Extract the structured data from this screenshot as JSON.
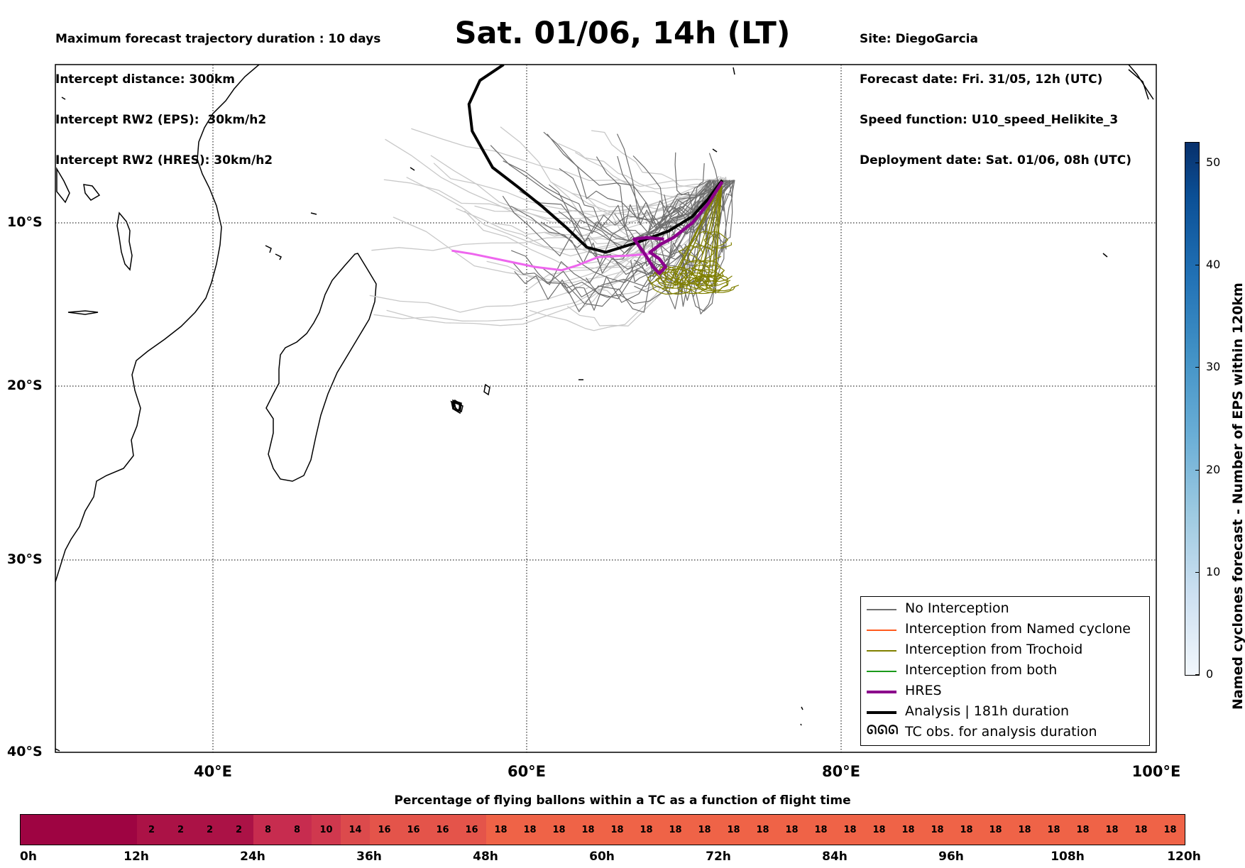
{
  "header_left": [
    "Maximum forecast trajectory duration : 10 days",
    "Intercept distance: 300km",
    "Intercept RW2 (EPS):  30km/h2",
    "Intercept RW2 (HRES): 30km/h2"
  ],
  "header_right": [
    "Site: DiegoGarcia",
    "Forecast date: Fri. 31/05, 12h (UTC)",
    "Speed function: U10_speed_Helikite_3",
    "Deployment date: Sat. 01/06, 08h (UTC)"
  ],
  "main_title": "Sat. 01/06, 14h (LT)",
  "map": {
    "lon_range": [
      30,
      100
    ],
    "lat_range": [
      -40,
      0
    ],
    "lat_labels": [
      "10°S",
      "20°S",
      "30°S",
      "40°S"
    ],
    "lon_labels": [
      "40°E",
      "60°E",
      "80°E",
      "100°E"
    ],
    "gridlines": "dotted",
    "release_site": {
      "lon": 72.4,
      "lat": -7.3
    },
    "colors": {
      "no_interception": "#6e6e6e",
      "no_interception_light": "#c8c8c8",
      "named_cyclone": "#ff5a1e",
      "trochoid": "#808000",
      "both": "#1a9a1a",
      "hres": "#8b008b",
      "analysis": "#000000",
      "pink_track": "#ee66ee"
    },
    "analysis_track": [
      [
        72.4,
        -7.3
      ],
      [
        71.5,
        -8.5
      ],
      [
        70.5,
        -9.6
      ],
      [
        69.0,
        -10.5
      ],
      [
        67.0,
        -11.2
      ],
      [
        65.0,
        -11.8
      ],
      [
        63.8,
        -11.5
      ],
      [
        62.5,
        -10.3
      ],
      [
        61.0,
        -9.0
      ],
      [
        59.5,
        -7.8
      ],
      [
        57.8,
        -6.5
      ],
      [
        56.5,
        -4.2
      ],
      [
        56.3,
        -2.5
      ],
      [
        57.0,
        -1.0
      ],
      [
        58.5,
        0.0
      ]
    ],
    "hres_track": [
      [
        72.4,
        -7.4
      ],
      [
        71.5,
        -8.8
      ],
      [
        70.5,
        -10.0
      ],
      [
        69.3,
        -10.9
      ],
      [
        68.5,
        -11.3
      ],
      [
        67.8,
        -11.8
      ],
      [
        68.4,
        -12.2
      ],
      [
        68.8,
        -12.7
      ],
      [
        68.4,
        -13.1
      ],
      [
        68.0,
        -12.7
      ],
      [
        67.4,
        -11.8
      ],
      [
        66.8,
        -11.0
      ],
      [
        67.6,
        -10.9
      ],
      [
        68.7,
        -11.0
      ]
    ],
    "pink_track": [
      [
        55.2,
        -11.7
      ],
      [
        56.5,
        -11.9
      ],
      [
        58.5,
        -12.3
      ],
      [
        60.5,
        -12.7
      ],
      [
        62.2,
        -12.9
      ],
      [
        63.2,
        -12.6
      ],
      [
        64.5,
        -12.1
      ],
      [
        66.5,
        -12.0
      ],
      [
        67.8,
        -11.9
      ]
    ]
  },
  "legend": {
    "items": [
      {
        "key": "no_interception",
        "label": "No Interception"
      },
      {
        "key": "named_cyclone",
        "label": "Interception from Named cyclone"
      },
      {
        "key": "trochoid",
        "label": "Interception from Trochoid"
      },
      {
        "key": "both",
        "label": "Interception from both"
      },
      {
        "key": "hres",
        "label": "HRES"
      },
      {
        "key": "analysis",
        "label": "Analysis | 181h duration"
      },
      {
        "key": "tc_obs",
        "label": "TC obs. for analysis duration",
        "symbol": "ᘏᘏᘏ"
      }
    ]
  },
  "colorbar": {
    "title": "Named cyclones forecast - Number of EPS within 120km",
    "min": 0,
    "max": 52,
    "ticks": [
      "0",
      "10",
      "20",
      "30",
      "40",
      "50"
    ]
  },
  "percentage_bar": {
    "title": "Percentage of flying ballons within a TC as a function of flight time",
    "cells": [
      "",
      "",
      "",
      "",
      "2",
      "2",
      "2",
      "2",
      "8",
      "8",
      "10",
      "14",
      "16",
      "16",
      "16",
      "16",
      "18",
      "18",
      "18",
      "18",
      "18",
      "18",
      "18",
      "18",
      "18",
      "18",
      "18",
      "18",
      "18",
      "18",
      "18",
      "18",
      "18",
      "18",
      "18",
      "18",
      "18",
      "18",
      "18",
      "18"
    ],
    "tick_labels": [
      "0h",
      "12h",
      "24h",
      "36h",
      "48h",
      "60h",
      "72h",
      "84h",
      "96h",
      "108h",
      "120h"
    ],
    "colors": {
      "0": "#9e0442",
      "2": "#ab1246",
      "8": "#c72c4f",
      "10": "#d0384e",
      "14": "#dc4a4c",
      "16": "#e4544a",
      "18": "#ef6347"
    }
  }
}
